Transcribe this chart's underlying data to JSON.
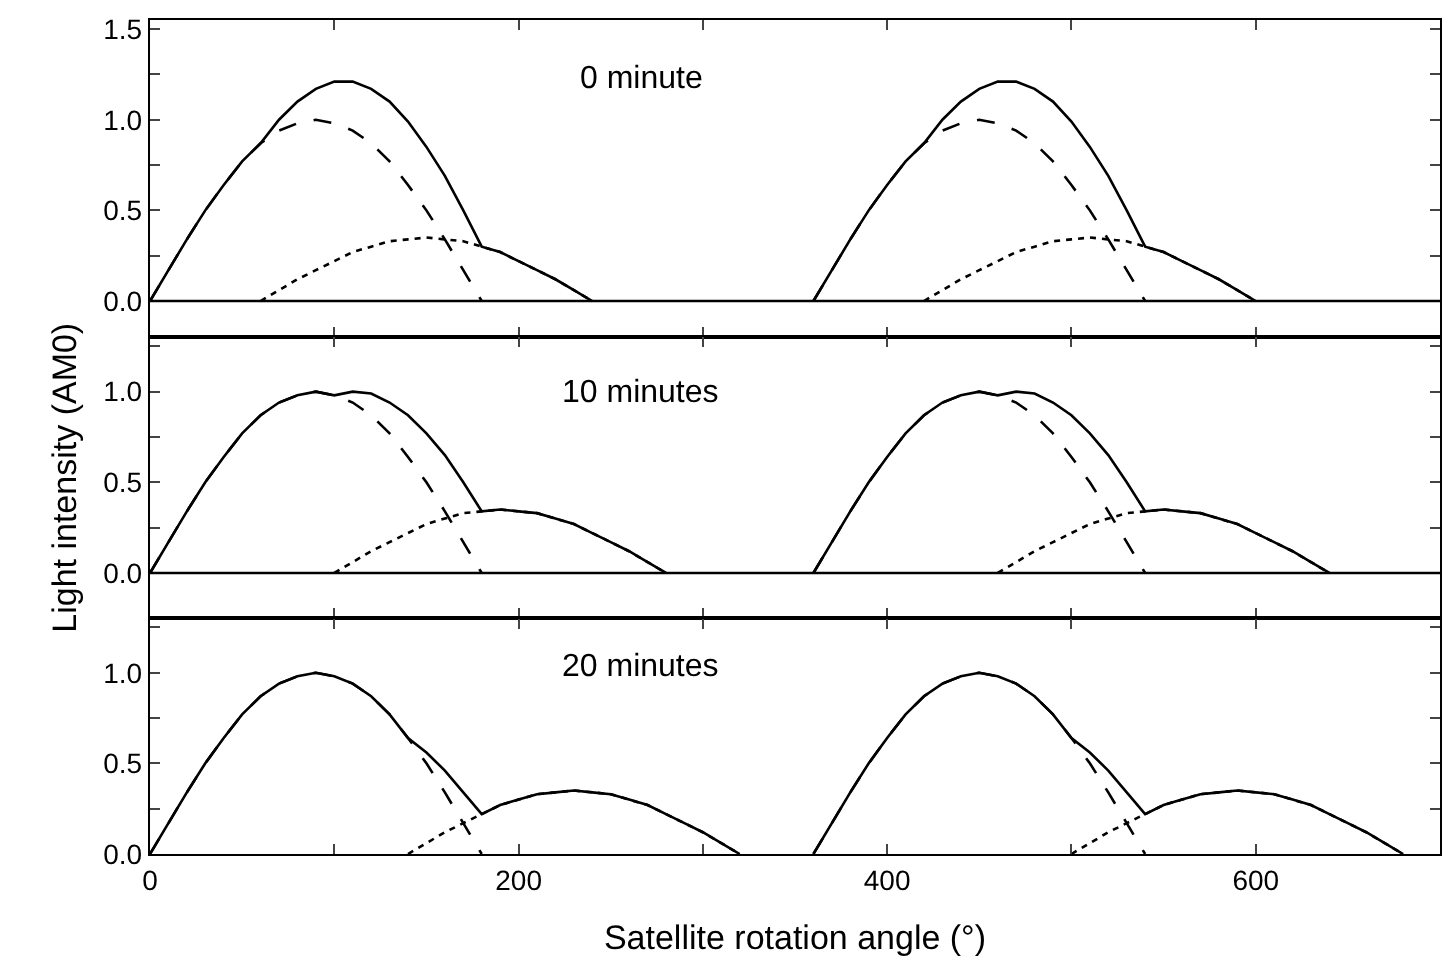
{
  "chart_data": [
    {
      "type": "line",
      "annotations": [
        "0 minute"
      ],
      "xlim": [
        0,
        700
      ],
      "xticks": [
        0,
        {
          "value": 100,
          "label": null
        },
        200,
        {
          "value": 300,
          "label": null
        },
        400,
        {
          "value": 500,
          "label": null
        },
        600,
        {
          "value": 700,
          "label": null
        }
      ],
      "ylim": [
        -0.2,
        1.55
      ],
      "yticks": [
        {
          "value": 0,
          "label": "0.0"
        },
        {
          "value": 0.25,
          "label": null
        },
        {
          "value": 0.5,
          "label": "0.5"
        },
        {
          "value": 0.75,
          "label": null
        },
        {
          "value": 1,
          "label": "1.0"
        },
        {
          "value": 1.25,
          "label": null
        },
        {
          "value": 1.5,
          "label": "1.5"
        }
      ],
      "tick_labels": "y",
      "ref_lines": [
        {
          "axis": "y",
          "value": 0,
          "color": "#000000"
        }
      ],
      "series": [
        {
          "color": "#000000",
          "line_style": "dashed",
          "x": [
            0,
            10,
            20,
            30,
            40,
            50,
            60,
            70,
            80,
            90,
            100,
            110,
            120,
            130,
            140,
            150,
            160,
            170,
            180
          ],
          "values": [
            0,
            0.17,
            0.34,
            0.5,
            0.64,
            0.77,
            0.87,
            0.94,
            0.98,
            1,
            0.98,
            0.94,
            0.87,
            0.77,
            0.64,
            0.5,
            0.34,
            0.17,
            0
          ]
        },
        {
          "color": "#000000",
          "line_style": "dotted",
          "x": [
            60,
            70,
            80,
            90,
            100,
            110,
            120,
            130,
            140,
            150,
            160,
            170,
            180,
            190,
            200,
            210,
            220,
            230,
            240
          ],
          "values": [
            0,
            0.06,
            0.12,
            0.17,
            0.22,
            0.27,
            0.3,
            0.33,
            0.34,
            0.35,
            0.34,
            0.33,
            0.3,
            0.27,
            0.22,
            0.17,
            0.12,
            0.06,
            0
          ]
        },
        {
          "color": "#000000",
          "line_style": "solid",
          "x": [
            0,
            10,
            20,
            30,
            40,
            50,
            60,
            70,
            80,
            90,
            100,
            110,
            120,
            130,
            140,
            150,
            160,
            170,
            180,
            190,
            200,
            210,
            220,
            230,
            240
          ],
          "values": [
            0,
            0.17,
            0.34,
            0.5,
            0.64,
            0.77,
            0.87,
            1.0,
            1.1,
            1.17,
            1.21,
            1.21,
            1.17,
            1.1,
            0.99,
            0.85,
            0.69,
            0.5,
            0.3,
            0.27,
            0.22,
            0.17,
            0.12,
            0.06,
            0
          ]
        },
        {
          "color": "#000000",
          "line_style": "dashed",
          "x": [
            360,
            370,
            380,
            390,
            400,
            410,
            420,
            430,
            440,
            450,
            460,
            470,
            480,
            490,
            500,
            510,
            520,
            530,
            540
          ],
          "values": [
            0,
            0.17,
            0.34,
            0.5,
            0.64,
            0.77,
            0.87,
            0.94,
            0.98,
            1,
            0.98,
            0.94,
            0.87,
            0.77,
            0.64,
            0.5,
            0.34,
            0.17,
            0
          ]
        },
        {
          "color": "#000000",
          "line_style": "dotted",
          "x": [
            420,
            430,
            440,
            450,
            460,
            470,
            480,
            490,
            500,
            510,
            520,
            530,
            540,
            550,
            560,
            570,
            580,
            590,
            600
          ],
          "values": [
            0,
            0.06,
            0.12,
            0.17,
            0.22,
            0.27,
            0.3,
            0.33,
            0.34,
            0.35,
            0.34,
            0.33,
            0.3,
            0.27,
            0.22,
            0.17,
            0.12,
            0.06,
            0
          ]
        },
        {
          "color": "#000000",
          "line_style": "solid",
          "x": [
            360,
            370,
            380,
            390,
            400,
            410,
            420,
            430,
            440,
            450,
            460,
            470,
            480,
            490,
            500,
            510,
            520,
            530,
            540,
            550,
            560,
            570,
            580,
            590,
            600
          ],
          "values": [
            0,
            0.17,
            0.34,
            0.5,
            0.64,
            0.77,
            0.87,
            1.0,
            1.1,
            1.17,
            1.21,
            1.21,
            1.17,
            1.1,
            0.99,
            0.85,
            0.69,
            0.5,
            0.3,
            0.27,
            0.22,
            0.17,
            0.12,
            0.06,
            0
          ]
        }
      ]
    },
    {
      "type": "line",
      "annotations": [
        "10 minutes"
      ],
      "ylabel": "Light intensity (AM0)",
      "xlim": [
        0,
        700
      ],
      "xticks": [
        0,
        {
          "value": 100,
          "label": null
        },
        200,
        {
          "value": 300,
          "label": null
        },
        400,
        {
          "value": 500,
          "label": null
        },
        600,
        {
          "value": 700,
          "label": null
        }
      ],
      "ylim": [
        -0.25,
        1.3
      ],
      "yticks": [
        {
          "value": 0,
          "label": "0.0"
        },
        {
          "value": 0.25,
          "label": null
        },
        {
          "value": 0.5,
          "label": "0.5"
        },
        {
          "value": 0.75,
          "label": null
        },
        {
          "value": 1,
          "label": "1.0"
        },
        {
          "value": 1.25,
          "label": null
        }
      ],
      "tick_labels": "y",
      "ref_lines": [
        {
          "axis": "y",
          "value": 0,
          "color": "#000000"
        }
      ],
      "series": [
        {
          "color": "#000000",
          "line_style": "dashed",
          "x": [
            0,
            10,
            20,
            30,
            40,
            50,
            60,
            70,
            80,
            90,
            100,
            110,
            120,
            130,
            140,
            150,
            160,
            170,
            180
          ],
          "values": [
            0,
            0.17,
            0.34,
            0.5,
            0.64,
            0.77,
            0.87,
            0.94,
            0.98,
            1,
            0.98,
            0.94,
            0.87,
            0.77,
            0.64,
            0.5,
            0.34,
            0.17,
            0
          ]
        },
        {
          "color": "#000000",
          "line_style": "dotted",
          "x": [
            100,
            110,
            120,
            130,
            140,
            150,
            160,
            170,
            180,
            190,
            200,
            210,
            220,
            230,
            240,
            250,
            260,
            270,
            280
          ],
          "values": [
            0,
            0.06,
            0.12,
            0.17,
            0.22,
            0.27,
            0.3,
            0.33,
            0.34,
            0.35,
            0.34,
            0.33,
            0.3,
            0.27,
            0.22,
            0.17,
            0.12,
            0.06,
            0
          ]
        },
        {
          "color": "#000000",
          "line_style": "solid",
          "x": [
            0,
            10,
            20,
            30,
            40,
            50,
            60,
            70,
            80,
            90,
            100,
            110,
            120,
            130,
            140,
            150,
            160,
            170,
            180,
            190,
            200,
            210,
            220,
            230,
            240,
            250,
            260,
            270,
            280
          ],
          "values": [
            0,
            0.17,
            0.34,
            0.5,
            0.64,
            0.77,
            0.87,
            0.94,
            0.98,
            1,
            0.98,
            1.0,
            0.99,
            0.94,
            0.87,
            0.77,
            0.65,
            0.5,
            0.34,
            0.35,
            0.34,
            0.33,
            0.3,
            0.27,
            0.22,
            0.17,
            0.12,
            0.06,
            0
          ]
        },
        {
          "color": "#000000",
          "line_style": "dashed",
          "x": [
            360,
            370,
            380,
            390,
            400,
            410,
            420,
            430,
            440,
            450,
            460,
            470,
            480,
            490,
            500,
            510,
            520,
            530,
            540
          ],
          "values": [
            0,
            0.17,
            0.34,
            0.5,
            0.64,
            0.77,
            0.87,
            0.94,
            0.98,
            1,
            0.98,
            0.94,
            0.87,
            0.77,
            0.64,
            0.5,
            0.34,
            0.17,
            0
          ]
        },
        {
          "color": "#000000",
          "line_style": "dotted",
          "x": [
            460,
            470,
            480,
            490,
            500,
            510,
            520,
            530,
            540,
            550,
            560,
            570,
            580,
            590,
            600,
            610,
            620,
            630,
            640
          ],
          "values": [
            0,
            0.06,
            0.12,
            0.17,
            0.22,
            0.27,
            0.3,
            0.33,
            0.34,
            0.35,
            0.34,
            0.33,
            0.3,
            0.27,
            0.22,
            0.17,
            0.12,
            0.06,
            0
          ]
        },
        {
          "color": "#000000",
          "line_style": "solid",
          "x": [
            360,
            370,
            380,
            390,
            400,
            410,
            420,
            430,
            440,
            450,
            460,
            470,
            480,
            490,
            500,
            510,
            520,
            530,
            540,
            550,
            560,
            570,
            580,
            590,
            600,
            610,
            620,
            630,
            640
          ],
          "values": [
            0,
            0.17,
            0.34,
            0.5,
            0.64,
            0.77,
            0.87,
            0.94,
            0.98,
            1,
            0.98,
            1.0,
            0.99,
            0.94,
            0.87,
            0.77,
            0.65,
            0.5,
            0.34,
            0.35,
            0.34,
            0.33,
            0.3,
            0.27,
            0.22,
            0.17,
            0.12,
            0.06,
            0
          ]
        }
      ]
    },
    {
      "type": "line",
      "annotations": [
        "20 minutes"
      ],
      "xlabel": "Satellite rotation angle (°)",
      "xlim": [
        0,
        700
      ],
      "xticks": [
        0,
        {
          "value": 100,
          "label": null
        },
        200,
        {
          "value": 300,
          "label": null
        },
        400,
        {
          "value": 500,
          "label": null
        },
        600,
        {
          "value": 700,
          "label": null
        }
      ],
      "ylim": [
        0,
        1.3
      ],
      "yticks": [
        {
          "value": 0,
          "label": "0.0"
        },
        {
          "value": 0.25,
          "label": null
        },
        {
          "value": 0.5,
          "label": "0.5"
        },
        {
          "value": 0.75,
          "label": null
        },
        {
          "value": 1,
          "label": "1.0"
        },
        {
          "value": 1.25,
          "label": null
        }
      ],
      "series": [
        {
          "color": "#000000",
          "line_style": "dashed",
          "x": [
            0,
            10,
            20,
            30,
            40,
            50,
            60,
            70,
            80,
            90,
            100,
            110,
            120,
            130,
            140,
            150,
            160,
            170,
            180
          ],
          "values": [
            0,
            0.17,
            0.34,
            0.5,
            0.64,
            0.77,
            0.87,
            0.94,
            0.98,
            1,
            0.98,
            0.94,
            0.87,
            0.77,
            0.64,
            0.5,
            0.34,
            0.17,
            0
          ]
        },
        {
          "color": "#000000",
          "line_style": "dotted",
          "x": [
            140,
            150,
            160,
            170,
            180,
            190,
            200,
            210,
            220,
            230,
            240,
            250,
            260,
            270,
            280,
            290,
            300,
            310,
            320
          ],
          "values": [
            0,
            0.06,
            0.12,
            0.17,
            0.22,
            0.27,
            0.3,
            0.33,
            0.34,
            0.35,
            0.34,
            0.33,
            0.3,
            0.27,
            0.22,
            0.17,
            0.12,
            0.06,
            0
          ]
        },
        {
          "color": "#000000",
          "line_style": "solid",
          "x": [
            0,
            10,
            20,
            30,
            40,
            50,
            60,
            70,
            80,
            90,
            100,
            110,
            120,
            130,
            140,
            150,
            160,
            170,
            180,
            190,
            200,
            210,
            220,
            230,
            240,
            250,
            260,
            270,
            280,
            290,
            300,
            310,
            320
          ],
          "values": [
            0,
            0.17,
            0.34,
            0.5,
            0.64,
            0.77,
            0.87,
            0.94,
            0.98,
            1,
            0.98,
            0.94,
            0.87,
            0.77,
            0.64,
            0.56,
            0.46,
            0.34,
            0.22,
            0.27,
            0.3,
            0.33,
            0.34,
            0.35,
            0.34,
            0.33,
            0.3,
            0.27,
            0.22,
            0.17,
            0.12,
            0.06,
            0
          ]
        },
        {
          "color": "#000000",
          "line_style": "dashed",
          "x": [
            360,
            370,
            380,
            390,
            400,
            410,
            420,
            430,
            440,
            450,
            460,
            470,
            480,
            490,
            500,
            510,
            520,
            530,
            540
          ],
          "values": [
            0,
            0.17,
            0.34,
            0.5,
            0.64,
            0.77,
            0.87,
            0.94,
            0.98,
            1,
            0.98,
            0.94,
            0.87,
            0.77,
            0.64,
            0.5,
            0.34,
            0.17,
            0
          ]
        },
        {
          "color": "#000000",
          "line_style": "dotted",
          "x": [
            500,
            510,
            520,
            530,
            540,
            550,
            560,
            570,
            580,
            590,
            600,
            610,
            620,
            630,
            640,
            650,
            660,
            670,
            680
          ],
          "values": [
            0,
            0.06,
            0.12,
            0.17,
            0.22,
            0.27,
            0.3,
            0.33,
            0.34,
            0.35,
            0.34,
            0.33,
            0.3,
            0.27,
            0.22,
            0.17,
            0.12,
            0.06,
            0
          ]
        },
        {
          "color": "#000000",
          "line_style": "solid",
          "x": [
            360,
            370,
            380,
            390,
            400,
            410,
            420,
            430,
            440,
            450,
            460,
            470,
            480,
            490,
            500,
            510,
            520,
            530,
            540,
            550,
            560,
            570,
            580,
            590,
            600,
            610,
            620,
            630,
            640,
            650,
            660,
            670,
            680
          ],
          "values": [
            0,
            0.17,
            0.34,
            0.5,
            0.64,
            0.77,
            0.87,
            0.94,
            0.98,
            1,
            0.98,
            0.94,
            0.87,
            0.77,
            0.64,
            0.56,
            0.46,
            0.34,
            0.22,
            0.27,
            0.3,
            0.33,
            0.34,
            0.35,
            0.34,
            0.33,
            0.3,
            0.27,
            0.22,
            0.17,
            0.12,
            0.06,
            0
          ]
        }
      ]
    }
  ]
}
